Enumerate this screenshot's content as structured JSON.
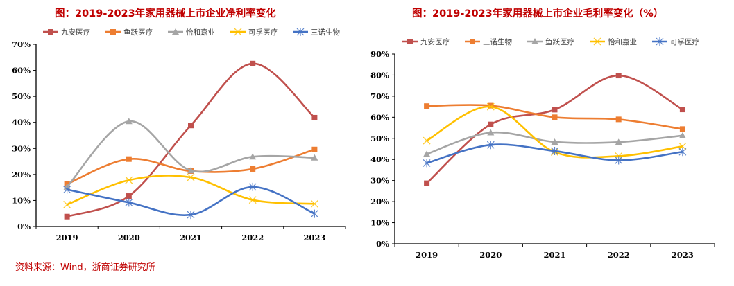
{
  "source_note": "资料来源：Wind，浙商证券研究所",
  "chart_data": [
    {
      "type": "line",
      "title": "图：2019-2023年家用器械上市企业净利率变化",
      "xlabel": "",
      "ylabel": "",
      "categories": [
        "2019",
        "2020",
        "2021",
        "2022",
        "2023"
      ],
      "ylim": [
        0,
        70
      ],
      "yticks": [
        "0%",
        "10%",
        "20%",
        "30%",
        "40%",
        "50%",
        "60%",
        "70%"
      ],
      "y_unit": "%",
      "grid": false,
      "smooth": true,
      "legend_position": "top",
      "series": [
        {
          "name": "九安医疗",
          "color": "#C0504D",
          "marker": "square",
          "values": [
            3.8,
            11.7,
            38.8,
            62.6,
            41.8
          ]
        },
        {
          "name": "鱼跃医疗",
          "color": "#ED7D31",
          "marker": "square",
          "values": [
            16.3,
            25.9,
            21.3,
            22.1,
            29.6
          ]
        },
        {
          "name": "怡和嘉业",
          "color": "#A5A5A5",
          "marker": "triangle",
          "values": [
            15.2,
            40.4,
            21.5,
            26.8,
            26.4
          ]
        },
        {
          "name": "可孚医疗",
          "color": "#FFC000",
          "marker": "x",
          "values": [
            8.4,
            17.8,
            18.9,
            10.2,
            8.7
          ]
        },
        {
          "name": "三诺生物",
          "color": "#4472C4",
          "marker": "star",
          "values": [
            14.2,
            9.2,
            4.5,
            15.2,
            4.9
          ]
        }
      ]
    },
    {
      "type": "line",
      "title": "图：2019-2023年家用器械上市企业毛利率变化（%）",
      "xlabel": "",
      "ylabel": "",
      "categories": [
        "2019",
        "2020",
        "2021",
        "2022",
        "2023"
      ],
      "ylim": [
        0,
        90
      ],
      "yticks": [
        "0%",
        "10%",
        "20%",
        "30%",
        "40%",
        "50%",
        "60%",
        "70%",
        "80%",
        "90%"
      ],
      "y_unit": "%",
      "grid": false,
      "smooth": true,
      "legend_position": "top",
      "series": [
        {
          "name": "九安医疗",
          "color": "#C0504D",
          "marker": "square",
          "values": [
            28.7,
            56.6,
            63.6,
            79.8,
            63.7
          ]
        },
        {
          "name": "三诺生物",
          "color": "#ED7D31",
          "marker": "square",
          "values": [
            65.3,
            65.5,
            60.0,
            59.0,
            54.4
          ]
        },
        {
          "name": "鱼跃医疗",
          "color": "#A5A5A5",
          "marker": "triangle",
          "values": [
            42.6,
            52.7,
            48.3,
            48.2,
            51.3
          ]
        },
        {
          "name": "怡和嘉业",
          "color": "#FFC000",
          "marker": "x",
          "values": [
            48.9,
            65.0,
            43.5,
            41.6,
            46.2
          ]
        },
        {
          "name": "可孚医疗",
          "color": "#4472C4",
          "marker": "star",
          "values": [
            38.3,
            46.9,
            44.0,
            39.6,
            43.6
          ]
        }
      ]
    }
  ]
}
